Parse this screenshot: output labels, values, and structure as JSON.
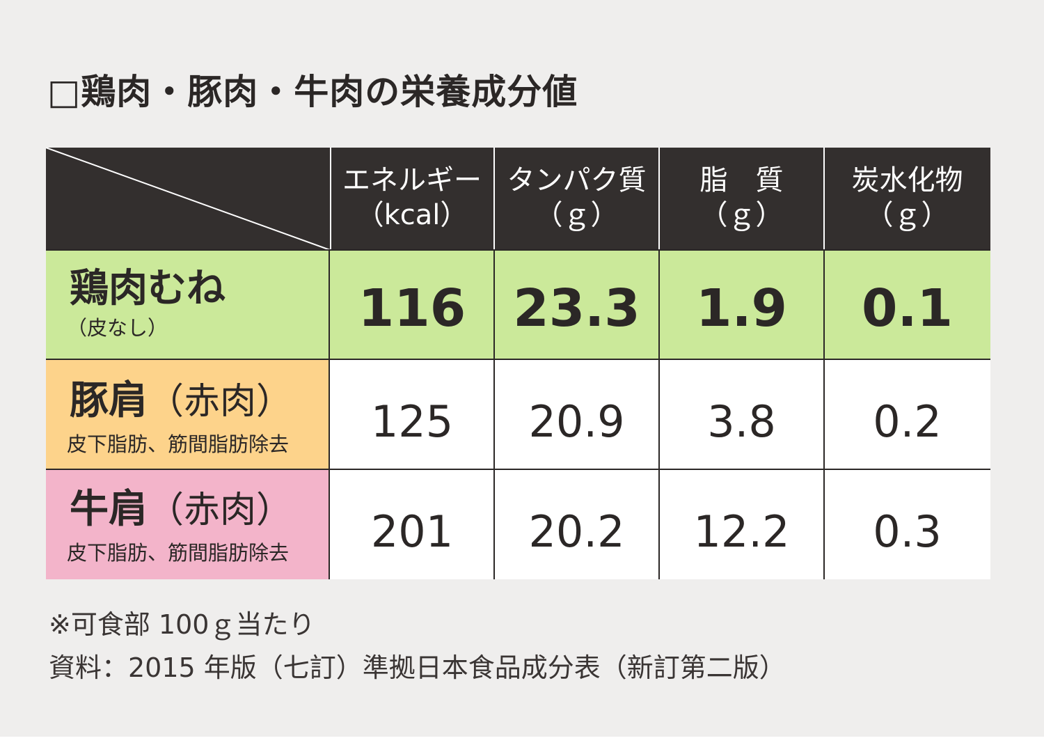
{
  "title": "□鶏肉・豚肉・牛肉の栄養成分値",
  "table": {
    "columns": [
      {
        "name": "エネルギー",
        "unit": "（kcal）"
      },
      {
        "name": "タンパク質",
        "unit": "（ｇ）"
      },
      {
        "name": "脂　質",
        "unit": "（ｇ）"
      },
      {
        "name": "炭水化物",
        "unit": "（ｇ）"
      }
    ],
    "rows": [
      {
        "name": "鶏肉むね",
        "name_paren": "",
        "sub": "（皮なし）",
        "values": [
          "116",
          "23.3",
          "1.9",
          "0.1"
        ],
        "color": "#cbe99a"
      },
      {
        "name": "豚肩",
        "name_paren": "（赤肉）",
        "sub": "皮下脂肪、筋間脂肪除去",
        "values": [
          "125",
          "20.9",
          "3.8",
          "0.2"
        ],
        "color": "#fdd38b"
      },
      {
        "name": "牛肩",
        "name_paren": "（赤肉）",
        "sub": "皮下脂肪、筋間脂肪除去",
        "values": [
          "201",
          "20.2",
          "12.2",
          "0.3"
        ],
        "color": "#f3b4ca"
      }
    ],
    "header_color": "#332f2e",
    "bold_values_color": "#cbe99a"
  },
  "notes": [
    "※可食部 100ｇ当たり",
    "資料：2015 年版（七訂）準拠日本食品成分表（新訂第二版）"
  ]
}
